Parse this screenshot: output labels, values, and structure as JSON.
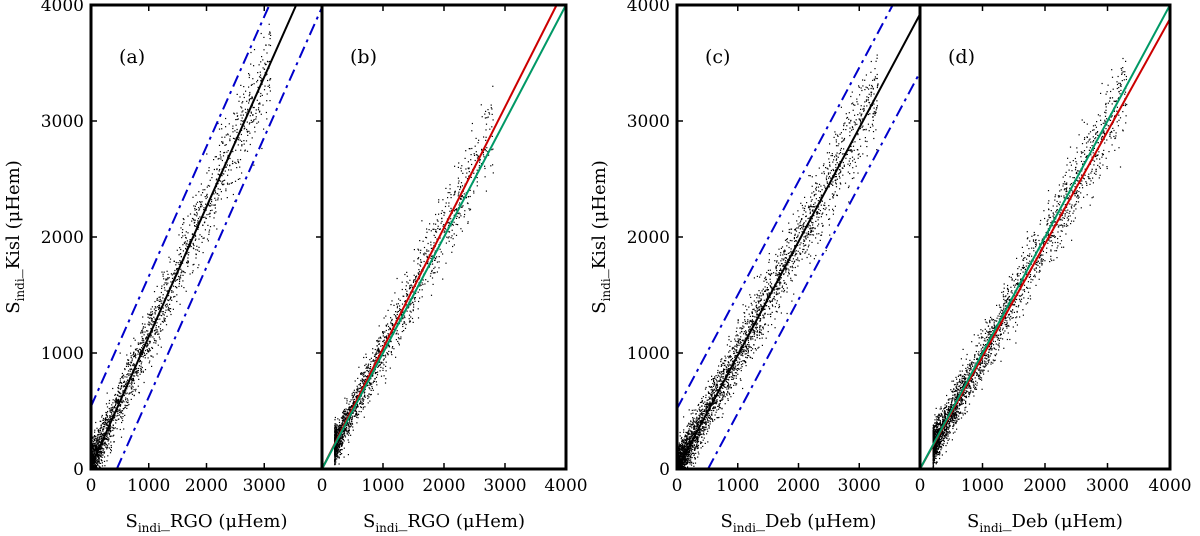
{
  "chart_data": [
    {
      "type": "scatter",
      "panel_label": "(a)",
      "x": {
        "sym": "S",
        "sub": "indi",
        "rest": "_RGO (μHem)"
      },
      "y": {
        "sym": "S",
        "sub": "indi",
        "rest": "_Kisl (μHem)"
      },
      "xlim": [
        0,
        4000
      ],
      "ylim": [
        0,
        4000
      ],
      "xticks": [
        0,
        1000,
        2000,
        3000
      ],
      "xtick_labels": [
        "0",
        "1000",
        "2000",
        "3000"
      ],
      "yticks": [
        0,
        1000,
        2000,
        3000,
        4000
      ],
      "ytick_labels": [
        "0",
        "1000",
        "2000",
        "3000",
        "4000"
      ],
      "scatter_seed": 11,
      "scatter_n": 2300,
      "scatter": {
        "xmax": 3100,
        "slope": 1.12,
        "intercept": 40,
        "spread": 200
      },
      "lines": [
        {
          "name": "fit",
          "color": "#000000",
          "style": "solid",
          "slope": 1.12,
          "intercept": 20
        },
        {
          "name": "upper bound",
          "color": "#0000cc",
          "style": "dashdot",
          "slope": 1.12,
          "intercept": 540
        },
        {
          "name": "lower bound",
          "color": "#0000cc",
          "style": "dashdot",
          "slope": 1.12,
          "intercept": -500
        }
      ]
    },
    {
      "type": "scatter",
      "panel_label": "(b)",
      "x": {
        "sym": "S",
        "sub": "indi",
        "rest": "_RGO (μHem)"
      },
      "y": null,
      "xlim": [
        0,
        4000
      ],
      "ylim": [
        0,
        4000
      ],
      "xticks": [
        0,
        1000,
        2000,
        3000,
        4000
      ],
      "xtick_labels": [
        "0",
        "1000",
        "2000",
        "3000",
        "4000"
      ],
      "yticks": [],
      "ytick_labels": [],
      "scatter_seed": 23,
      "scatter_n": 1900,
      "scatter": {
        "xmin": 200,
        "xmax": 2800,
        "slope": 1.04,
        "intercept": 0,
        "spread": 170
      },
      "lines": [
        {
          "name": "fit",
          "color": "#cc0000",
          "style": "solid",
          "slope": 1.04,
          "intercept": 0
        },
        {
          "name": "y = x",
          "color": "#009966",
          "style": "solid",
          "slope": 1.0,
          "intercept": 0
        }
      ]
    },
    {
      "type": "scatter",
      "panel_label": "(c)",
      "x": {
        "sym": "S",
        "sub": "indi",
        "rest": "_Deb (μHem)"
      },
      "y": {
        "sym": "S",
        "sub": "indi",
        "rest": "_Kisl (μHem)"
      },
      "xlim": [
        0,
        4000
      ],
      "ylim": [
        0,
        4000
      ],
      "xticks": [
        0,
        1000,
        2000,
        3000
      ],
      "xtick_labels": [
        "0",
        "1000",
        "2000",
        "3000"
      ],
      "yticks": [
        0,
        1000,
        2000,
        3000,
        4000
      ],
      "ytick_labels": [
        "0",
        "1000",
        "2000",
        "3000",
        "4000"
      ],
      "scatter_seed": 37,
      "scatter_n": 3200,
      "scatter": {
        "xmax": 3300,
        "slope": 0.98,
        "intercept": 15,
        "spread": 190
      },
      "lines": [
        {
          "name": "fit",
          "color": "#000000",
          "style": "solid",
          "slope": 0.98,
          "intercept": 0
        },
        {
          "name": "upper bound",
          "color": "#0000cc",
          "style": "dashdot",
          "slope": 0.98,
          "intercept": 520
        },
        {
          "name": "lower bound",
          "color": "#0000cc",
          "style": "dashdot",
          "slope": 0.98,
          "intercept": -500
        }
      ]
    },
    {
      "type": "scatter",
      "panel_label": "(d)",
      "x": {
        "sym": "S",
        "sub": "indi",
        "rest": "_Deb (μHem)"
      },
      "y": null,
      "xlim": [
        0,
        4000
      ],
      "ylim": [
        0,
        4000
      ],
      "xticks": [
        0,
        1000,
        2000,
        3000,
        4000
      ],
      "xtick_labels": [
        "0",
        "1000",
        "2000",
        "3000",
        "4000"
      ],
      "yticks": [],
      "ytick_labels": [],
      "scatter_seed": 51,
      "scatter_n": 2800,
      "scatter": {
        "xmin": 200,
        "xmax": 3300,
        "slope": 0.99,
        "intercept": 0,
        "spread": 175
      },
      "lines": [
        {
          "name": "fit",
          "color": "#cc0000",
          "style": "solid",
          "slope": 0.97,
          "intercept": 0
        },
        {
          "name": "y = x",
          "color": "#009966",
          "style": "solid",
          "slope": 1.0,
          "intercept": 0
        }
      ]
    }
  ]
}
